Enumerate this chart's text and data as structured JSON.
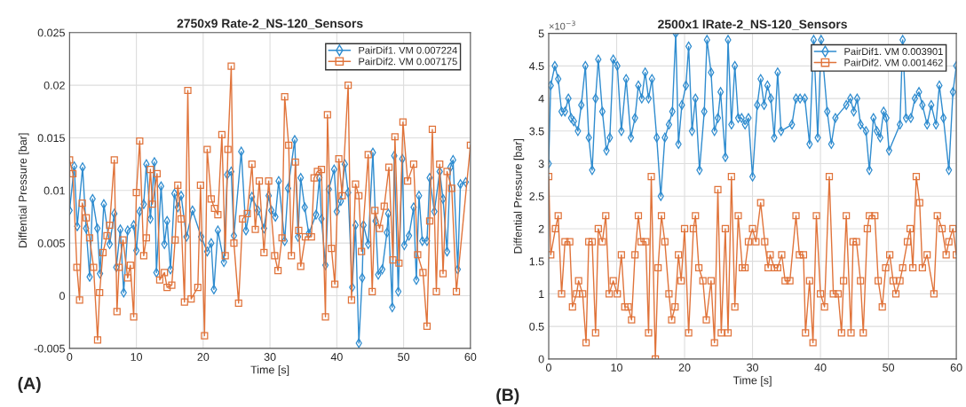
{
  "chart_data": [
    {
      "type": "line",
      "title": "2750x9 Rate-2_NS-120_Sensors",
      "xlabel": "Time [s]",
      "ylabel": "Diffential Pressure [bar]",
      "annotations": [
        "(A)"
      ],
      "xlim": [
        0,
        60
      ],
      "xticks": [
        0,
        10,
        20,
        30,
        40,
        50,
        60
      ],
      "ylim": [
        -0.005,
        0.025
      ],
      "yticks": [
        -0.005,
        0,
        0.005,
        0.01,
        0.015,
        0.02,
        0.025
      ],
      "grid": true,
      "legend": "top right",
      "line_style": "solid",
      "series": [
        {
          "name": "PairDif1. VM 0.007224",
          "color": "#2f8ccf",
          "marker": "diamond",
          "x": [
            0,
            0.7,
            1.15,
            1.95,
            2.48,
            3.01,
            3.45,
            4.16,
            4.56,
            5.13,
            6.0,
            6.7,
            7.0,
            7.6,
            8.1,
            8.7,
            9.6,
            10.0,
            10.5,
            11.1,
            11.5,
            12.1,
            12.7,
            13.0,
            13.7,
            14.2,
            14.6,
            15.1,
            15.7,
            16.2,
            16.7,
            17.5,
            18.4,
            19.7,
            20.6,
            21.2,
            21.6,
            22.2,
            23.1,
            23.6,
            24.2,
            24.6,
            25.7,
            26.4,
            27.3,
            28.2,
            29.1,
            29.8,
            30.2,
            30.8,
            31.3,
            32.2,
            32.7,
            33.7,
            34.2,
            34.6,
            35.2,
            35.8,
            36.9,
            37.4,
            37.7,
            38.3,
            38.8,
            39.6,
            40.0,
            40.6,
            41.2,
            41.7,
            42.3,
            42.8,
            43.3,
            43.8,
            44.0,
            44.7,
            45.4,
            45.8,
            46.2,
            46.8,
            47.5,
            47.7,
            48.3,
            48.6,
            49.2,
            49.8,
            50.1,
            50.8,
            51.5,
            51.9,
            52.3,
            52.8,
            53.5,
            53.9,
            54.6,
            55.4,
            55.9,
            56.5,
            57.0,
            57.4,
            58.1,
            58.5,
            59.3
          ],
          "values": [
            0.0081,
            0.0123,
            0.0066,
            0.0122,
            0.0064,
            0.0018,
            0.0092,
            0.0064,
            0.0021,
            0.0087,
            0.0049,
            0.0078,
            0.0027,
            0.0063,
            0.0003,
            0.0062,
            0.0067,
            0.0043,
            0.008,
            0.0087,
            0.0125,
            0.0073,
            0.0127,
            0.0022,
            0.0104,
            0.0049,
            0.0071,
            0.0025,
            0.0097,
            0.0084,
            0.0095,
            0.0056,
            0.0081,
            0.0056,
            0.0042,
            0.005,
            0.0006,
            0.0062,
            0.0032,
            0.0115,
            0.0118,
            0.0057,
            0.0137,
            0.0062,
            0.0094,
            0.0081,
            0.0064,
            0.0095,
            0.0081,
            0.0075,
            0.0109,
            0.0052,
            0.0102,
            0.0148,
            0.0056,
            0.0112,
            0.0084,
            0.0059,
            0.0077,
            0.0112,
            0.0073,
            0.0029,
            0.0101,
            0.012,
            0.008,
            0.009,
            0.0125,
            0.0098,
            0.0008,
            0.0067,
            -0.0045,
            0.0017,
            0.0067,
            0.0049,
            0.0136,
            0.0071,
            0.002,
            0.0025,
            0.006,
            0.0078,
            -0.0011,
            0.0133,
            0.0004,
            0.013,
            0.0048,
            0.0057,
            0.0084,
            0.0015,
            0.0095,
            0.0052,
            0.0052,
            0.0112,
            0.008,
            0.0118,
            0.0092,
            0.0042,
            0.0122,
            0.0129,
            0.0025,
            0.0106,
            0.0108
          ]
        },
        {
          "name": "PairDif2. VM 0.007175",
          "color": "#e0733a",
          "marker": "square",
          "x": [
            0,
            0.5,
            1.1,
            1.5,
            1.9,
            2.5,
            3.0,
            3.6,
            4.2,
            4.5,
            5.0,
            5.6,
            6.0,
            6.7,
            7.1,
            7.4,
            8.0,
            8.7,
            9.1,
            9.6,
            10.0,
            10.5,
            11.1,
            11.5,
            12.1,
            12.4,
            13.1,
            13.5,
            14.2,
            14.6,
            15.3,
            15.8,
            16.2,
            16.7,
            17.2,
            17.7,
            18.2,
            19.2,
            19.6,
            20.2,
            20.6,
            21.2,
            21.7,
            22.2,
            22.8,
            23.3,
            23.7,
            24.2,
            24.6,
            25.3,
            25.9,
            26.6,
            27.3,
            27.8,
            28.4,
            29.1,
            29.8,
            30.7,
            31.2,
            31.8,
            32.2,
            32.8,
            33.2,
            33.8,
            34.3,
            34.6,
            35.3,
            36.2,
            36.6,
            37.1,
            37.7,
            38.3,
            38.6,
            39.2,
            39.7,
            40.3,
            40.8,
            41.7,
            42.2,
            42.8,
            43.3,
            43.7,
            44.7,
            45.3,
            45.7,
            46.4,
            47.1,
            47.8,
            48.4,
            48.7,
            49.3,
            49.9,
            50.6,
            51.5,
            52.1,
            52.9,
            53.5,
            53.9,
            54.3,
            54.9,
            55.4,
            55.9,
            56.5,
            57.2,
            57.9,
            60
          ],
          "values": [
            0.0129,
            0.0116,
            0.0027,
            -0.0004,
            0.0088,
            0.0074,
            0.0055,
            0.0027,
            -0.0042,
            0.0003,
            0.0041,
            0.0057,
            0.0067,
            0.0129,
            -0.0015,
            0.0027,
            0.0053,
            0.0017,
            0.0029,
            -0.002,
            0.0098,
            0.0147,
            0.0038,
            0.0055,
            0.012,
            0.0087,
            0.0116,
            0.0015,
            0.0022,
            0.0008,
            0.001,
            0.0053,
            0.0105,
            0.0073,
            -0.0006,
            0.0195,
            -0.0003,
            0.0008,
            0.0105,
            -0.0038,
            0.0139,
            0.0092,
            0.0083,
            0.0077,
            0.0153,
            0.0038,
            0.0139,
            0.0218,
            0.005,
            -0.0007,
            0.0073,
            0.0078,
            0.0125,
            0.0063,
            0.0109,
            0.0041,
            0.0109,
            0.0038,
            0.0024,
            0.0055,
            0.0189,
            0.0143,
            0.0038,
            0.0127,
            0.0062,
            0.0028,
            0.0056,
            0.0056,
            0.0112,
            0.0118,
            0.012,
            -0.002,
            0.0172,
            0.0045,
            0.0011,
            0.013,
            0.0095,
            0.02,
            -0.0004,
            0.0106,
            0.0095,
            0.0042,
            0.0134,
            0.0004,
            0.0081,
            0.0064,
            0.0085,
            0.0122,
            0.0034,
            0.0151,
            0.0031,
            0.0165,
            0.0109,
            0.0125,
            0.0039,
            0.0022,
            -0.0029,
            0.0071,
            0.0158,
            0.0004,
            0.0125,
            0.0021,
            0.0118,
            0.0102,
            0.0004,
            0.0143
          ]
        }
      ]
    },
    {
      "type": "line",
      "title": "2500x1 lRate-2_NS-120_Sensors",
      "xlabel": "Time [s]",
      "ylabel": "Diffential Pressure [bar]",
      "annotations": [
        "(B)",
        "×10$^{−3}$"
      ],
      "xlim": [
        0,
        60
      ],
      "xticks": [
        0,
        10,
        20,
        30,
        40,
        50,
        60
      ],
      "ylim": [
        0,
        5
      ],
      "yticks": [
        0,
        0.5,
        1,
        1.5,
        2,
        2.5,
        3,
        3.5,
        4,
        4.5,
        5
      ],
      "grid": true,
      "legend": "top right",
      "line_style": "solid",
      "series": [
        {
          "name": "PairDif1. VM 0.003901",
          "color": "#2f8ccf",
          "marker": "diamond",
          "x": [
            0,
            0.3,
            0.9,
            1.4,
            1.9,
            2.4,
            2.9,
            3.3,
            3.7,
            4.3,
            4.8,
            5.4,
            5.9,
            6.4,
            6.9,
            7.3,
            7.9,
            8.5,
            9.0,
            9.5,
            10.1,
            10.7,
            11.4,
            12.1,
            12.7,
            13.2,
            13.7,
            14.2,
            14.7,
            15.2,
            15.9,
            16.5,
            17.1,
            17.7,
            18.2,
            18.7,
            19.1,
            19.6,
            20.2,
            20.6,
            21.1,
            21.6,
            22.2,
            22.9,
            23.3,
            23.9,
            24.4,
            24.9,
            25.3,
            26.0,
            26.4,
            26.9,
            27.4,
            27.9,
            28.4,
            28.9,
            29.4,
            30.0,
            30.7,
            31.2,
            31.7,
            32.2,
            32.7,
            33.2,
            33.7,
            34.2,
            35.8,
            36.4,
            37.0,
            37.7,
            38.4,
            39.0,
            39.6,
            40.1,
            41.0,
            41.6,
            42.2,
            43.8,
            44.4,
            44.9,
            45.4,
            45.9,
            46.7,
            47.2,
            47.8,
            48.3,
            48.8,
            49.3,
            49.7,
            50.1,
            51.7,
            52.1,
            52.6,
            53.3,
            53.9,
            54.5,
            55.0,
            55.7,
            56.3,
            57.0,
            57.5,
            58.1,
            58.9,
            59.5,
            60.0
          ],
          "values": [
            3,
            4.2,
            4.5,
            4.3,
            3.8,
            3.8,
            4,
            3.7,
            3.65,
            3.5,
            3.9,
            4.5,
            3.4,
            2.9,
            4,
            4.6,
            3.8,
            3.2,
            3.4,
            4.6,
            4.5,
            3.5,
            4.3,
            3.4,
            3.7,
            4.2,
            4,
            4.4,
            4,
            4.3,
            3.4,
            2.5,
            3.4,
            3.6,
            3.8,
            5,
            3.3,
            3.9,
            4.2,
            4.8,
            3.5,
            4,
            2.9,
            3.8,
            4.9,
            4.4,
            3.5,
            3.7,
            4.1,
            3.1,
            4.9,
            3.6,
            4.5,
            3.7,
            3.7,
            3.6,
            3.7,
            2.8,
            3.9,
            4.3,
            3.9,
            4.2,
            4,
            3.4,
            4.4,
            3.5,
            3.6,
            4,
            4,
            4,
            3.3,
            4.9,
            3.4,
            4.9,
            3.8,
            3.3,
            3.7,
            3.9,
            4,
            3.8,
            4,
            3.6,
            3.5,
            2.9,
            3.7,
            3.5,
            3.4,
            3.8,
            3.7,
            3.2,
            3.6,
            4.9,
            3.7,
            3.7,
            4,
            4.1,
            3.9,
            3.6,
            3.9,
            3.6,
            4.2,
            3.7,
            2.9,
            4.1,
            4.5
          ]
        },
        {
          "name": "PairDif2. VM 0.001462",
          "color": "#e0733a",
          "marker": "square",
          "x": [
            0,
            0.3,
            1.0,
            1.4,
            1.9,
            2.4,
            3.1,
            3.5,
            4.1,
            4.4,
            5.0,
            5.5,
            5.9,
            6.4,
            6.9,
            7.3,
            7.9,
            8.4,
            8.9,
            9.5,
            10.1,
            10.7,
            11.2,
            11.7,
            12.2,
            12.7,
            13.2,
            13.6,
            14.3,
            14.7,
            15.1,
            15.7,
            16.1,
            16.6,
            17.1,
            17.7,
            18.1,
            18.6,
            19.1,
            19.5,
            20.0,
            20.6,
            21.3,
            21.6,
            22.1,
            22.7,
            23.2,
            23.9,
            24.4,
            24.9,
            25.4,
            26.0,
            26.4,
            26.9,
            27.4,
            27.9,
            28.5,
            28.9,
            29.4,
            30.0,
            30.5,
            31.2,
            31.8,
            32.3,
            32.6,
            33.2,
            33.7,
            34.3,
            34.8,
            35.5,
            36.4,
            36.9,
            37.5,
            37.8,
            38.4,
            38.9,
            39.4,
            40.0,
            40.6,
            41.3,
            41.9,
            42.6,
            43.1,
            43.4,
            43.8,
            44.5,
            44.8,
            45.3,
            45.9,
            46.3,
            46.9,
            47.2,
            48.0,
            48.5,
            49.1,
            49.6,
            50.2,
            50.7,
            51.1,
            51.7,
            52.1,
            52.8,
            53.2,
            53.6,
            54.1,
            54.6,
            55.0,
            55.7,
            56.7,
            57.2,
            57.9,
            58.5,
            58.9,
            59.5,
            60.0
          ],
          "values": [
            2.8,
            1.6,
            2,
            2.2,
            1,
            1.8,
            1.8,
            0.8,
            1,
            1.2,
            1,
            0.25,
            1.8,
            1.8,
            0.4,
            2,
            1.8,
            2.2,
            1,
            1.2,
            1,
            1.6,
            0.8,
            0.8,
            0.6,
            1.6,
            2.2,
            1.8,
            1.8,
            0.4,
            2.8,
            0,
            1.4,
            2.2,
            1.8,
            1,
            0.6,
            0.8,
            1.6,
            1.2,
            2,
            0.4,
            2,
            2.2,
            1.4,
            1.2,
            0.6,
            1.2,
            0.25,
            2.6,
            0.4,
            2,
            0.4,
            2.8,
            0.8,
            2.2,
            1.4,
            1.4,
            1.8,
            2,
            1.8,
            2.4,
            1.8,
            1.4,
            1.6,
            1.4,
            1.4,
            1.6,
            1.2,
            1.2,
            2.2,
            1.6,
            1.6,
            0.4,
            1.2,
            0.25,
            2.2,
            1,
            0.8,
            2.8,
            1,
            1,
            0.4,
            1.2,
            2.2,
            0.4,
            1.8,
            1.8,
            1.2,
            0.4,
            2,
            2.2,
            2.2,
            1.2,
            0.8,
            1.4,
            1.6,
            1.2,
            1,
            1.2,
            1.4,
            1.8,
            2,
            1.4,
            2.8,
            2.4,
            1.4,
            1.6,
            1,
            2.2,
            2,
            1.6,
            1.8,
            2,
            1.6
          ]
        }
      ]
    }
  ]
}
